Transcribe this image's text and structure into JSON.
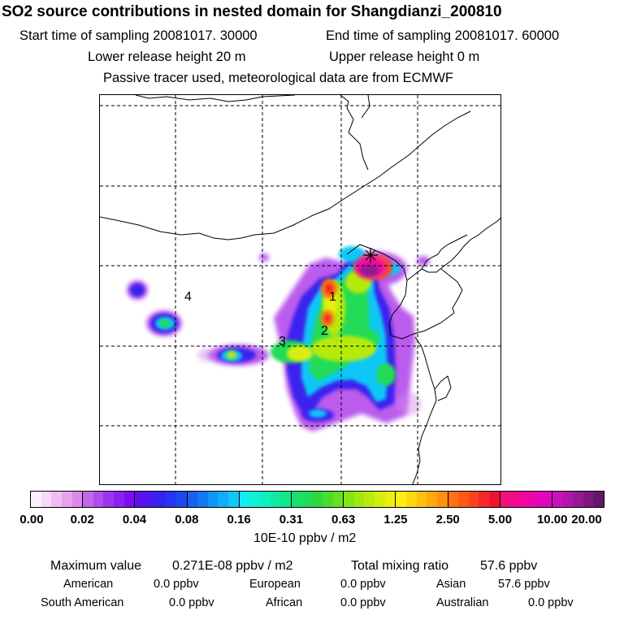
{
  "header": {
    "title": "SO2 source contributions in nested domain for Shangdianzi_200810",
    "start_label": "Start time of sampling 20081017. 30000",
    "end_label": "End time of sampling 20081017. 60000",
    "lower_release": "Lower release height   20 m",
    "upper_release": "Upper release height    0 m",
    "tracer_note": "Passive tracer used, meteorological data are from ECMWF"
  },
  "map": {
    "region_labels": [
      "1",
      "2",
      "3",
      "4"
    ],
    "site_marker": "station-asterisk-icon"
  },
  "colorbar": {
    "ticks": [
      "0.00",
      "0.02",
      "0.04",
      "0.08",
      "0.16",
      "0.31",
      "0.63",
      "1.25",
      "2.50",
      "5.00",
      "10.00",
      "20.00"
    ],
    "unit": "10E-10 ppbv / m2",
    "groups": [
      [
        "#fdf0fd",
        "#f8d8f8",
        "#f0bdf2",
        "#e8a2ee",
        "#dd88ec"
      ],
      [
        "#c266ea",
        "#b04cec",
        "#9f34ee",
        "#8f1ef2",
        "#7a0ef0"
      ],
      [
        "#5e10ee",
        "#4a18f0",
        "#3424ef",
        "#2636ee",
        "#1c48f0"
      ],
      [
        "#1660f2",
        "#127af4",
        "#1094f6",
        "#10aef6",
        "#10c8f6"
      ],
      [
        "#10ecf2",
        "#10f0d8",
        "#10eec0",
        "#10eaa4",
        "#10e68a"
      ],
      [
        "#18e070",
        "#20dc58",
        "#30d840",
        "#48dc30",
        "#66e020"
      ],
      [
        "#84e414",
        "#a0e810",
        "#baea10",
        "#d4ee10",
        "#ecf010"
      ],
      [
        "#ffee10",
        "#ffd810",
        "#ffc010",
        "#ffa810",
        "#ff9010"
      ],
      [
        "#ff7010",
        "#ff5818",
        "#ff4020",
        "#f42a28",
        "#ee1430"
      ],
      [
        "#f01078",
        "#f20a8c",
        "#ee08a0",
        "#e806b0",
        "#de06be"
      ],
      [
        "#c810b8",
        "#b016a8",
        "#961896",
        "#7e1880",
        "#641668"
      ]
    ]
  },
  "stats": {
    "max_label": "Maximum value",
    "max_value": "0.271E-08 ppbv / m2",
    "total_label": "Total mixing ratio",
    "total_value": "57.6 ppbv",
    "regions": [
      {
        "name": "American",
        "value": "0.0 ppbv"
      },
      {
        "name": "European",
        "value": "0.0 ppbv"
      },
      {
        "name": "Asian",
        "value": "57.6 ppbv"
      },
      {
        "name": "South American",
        "value": "0.0 ppbv"
      },
      {
        "name": "African",
        "value": "0.0 ppbv"
      },
      {
        "name": "Australian",
        "value": "0.0 ppbv"
      }
    ]
  }
}
